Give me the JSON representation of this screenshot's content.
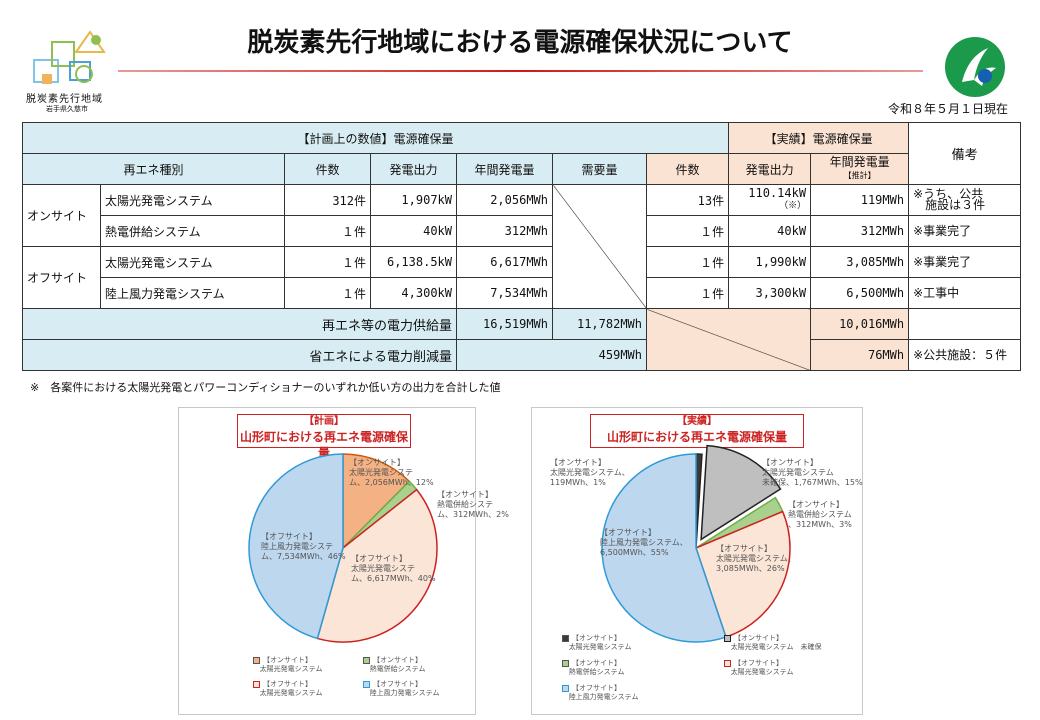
{
  "header": {
    "title": "脱炭素先行地域における電源確保状況について",
    "date": "令和８年５月１日現在",
    "logo_text1": "脱炭素先行地域",
    "logo_text2": "岩手県久慈市"
  },
  "table": {
    "plan_header": "【計画上の数値】電源確保量",
    "actual_header": "【実績】電源確保量",
    "remarks_header": "備考",
    "col_type": "再エネ種別",
    "col_count": "件数",
    "col_output": "発電出力",
    "col_annual": "年間発電量",
    "col_demand": "需要量",
    "col_count_a": "件数",
    "col_output_a": "発電出力",
    "col_annual_a": "年間発電量",
    "col_annual_a_sub": "【推計】",
    "group_onsite": "オンサイト",
    "group_offsite": "オフサイト",
    "rows": [
      {
        "type": "太陽光発電システム",
        "count": "312件",
        "output": "1,907kW",
        "annual": "2,056MWh",
        "count_a": "13件",
        "output_a": "110.14kW",
        "output_a_note": "（※）",
        "annual_a": "119MWh",
        "note": "※うち、公共\n　施設は３件"
      },
      {
        "type": "熱電併給システム",
        "count": "１件",
        "output": "40kW",
        "annual": "312MWh",
        "count_a": "１件",
        "output_a": "40kW",
        "annual_a": "312MWh",
        "note": "※事業完了"
      },
      {
        "type": "太陽光発電システム",
        "count": "１件",
        "output": "6,138.5kW",
        "annual": "6,617MWh",
        "count_a": "１件",
        "output_a": "1,990kW",
        "annual_a": "3,085MWh",
        "note": "※事業完了"
      },
      {
        "type": "陸上風力発電システム",
        "count": "１件",
        "output": "4,300kW",
        "annual": "7,534MWh",
        "count_a": "１件",
        "output_a": "3,300kW",
        "annual_a": "6,500MWh",
        "note": "※工事中"
      }
    ],
    "supply_label": "再エネ等の電力供給量",
    "supply_plan": "16,519MWh",
    "supply_demand": "11,782MWh",
    "supply_actual": "10,016MWh",
    "saving_label": "省エネによる電力削減量",
    "saving_plan": "459MWh",
    "saving_actual": "76MWh",
    "saving_note": "※公共施設：５件"
  },
  "footnote": "※　各案件における太陽光発電とパワーコンディショナーのいずれか低い方の出力を合計した値",
  "chart_data": [
    {
      "type": "pie",
      "title_small": "【計画】",
      "title": "山形町における再エネ電源確保量",
      "slices": [
        {
          "name": "【オンサイト】太陽光発電システム",
          "value": 2056,
          "percent": 12,
          "color": "#f4b183"
        },
        {
          "name": "【オンサイト】熱電併給システム",
          "value": 312,
          "percent": 2,
          "color": "#a9d18e"
        },
        {
          "name": "【オフサイト】太陽光発電システム",
          "value": 6617,
          "percent": 40,
          "color": "#fbe5d6"
        },
        {
          "name": "【オフサイト】陸上風力発電システム",
          "value": 7534,
          "percent": 46,
          "color": "#bdd7ee"
        }
      ],
      "labels": [
        {
          "l1": "【オンサイト】",
          "l2": "太陽光発電システ",
          "l3": "ム、2,056MWh、12%"
        },
        {
          "l1": "【オンサイト】",
          "l2": "熱電併給システ",
          "l3": "ム、312MWh、2%"
        },
        {
          "l1": "【オフサイト】",
          "l2": "太陽光発電システ",
          "l3": "ム、6,617MWh、40%"
        },
        {
          "l1": "【オフサイト】",
          "l2": "陸上風力発電システ",
          "l3": "ム、7,534MWh、46%"
        }
      ],
      "legend": [
        {
          "l1": "【オンサイト】",
          "l2": "太陽光発電システム"
        },
        {
          "l1": "【オンサイト】",
          "l2": "熱電併給システム"
        },
        {
          "l1": "【オフサイト】",
          "l2": "太陽光発電システム"
        },
        {
          "l1": "【オフサイト】",
          "l2": "陸上風力発電システム"
        }
      ]
    },
    {
      "type": "pie",
      "title_small": "【実績】",
      "title": "山形町における再エネ電源確保量",
      "slices": [
        {
          "name": "【オンサイト】太陽光発電システム",
          "value": 119,
          "percent": 1,
          "color": "#3a3a3a"
        },
        {
          "name": "【オンサイト】太陽光発電システム 未確保",
          "value": 1767,
          "percent": 15,
          "color": "#bfbfbf"
        },
        {
          "name": "【オンサイト】熱電併給システム",
          "value": 312,
          "percent": 3,
          "color": "#a9d18e"
        },
        {
          "name": "【オフサイト】太陽光発電システム",
          "value": 3085,
          "percent": 26,
          "color": "#fbe5d6"
        },
        {
          "name": "【オフサイト】陸上風力発電システム",
          "value": 6500,
          "percent": 55,
          "color": "#bdd7ee"
        }
      ],
      "labels": [
        {
          "l1": "【オンサイト】",
          "l2": "太陽光発電システム、",
          "l3": "119MWh、1%"
        },
        {
          "l1": "【オンサイト】",
          "l2": "太陽光発電システム",
          "l3": "未確保、1,767MWh、15%"
        },
        {
          "l1": "【オンサイト】",
          "l2": "熱電併給システム",
          "l3": "、312MWh、3%"
        },
        {
          "l1": "【オフサイト】",
          "l2": "太陽光発電システム、",
          "l3": "3,085MWh、26%"
        },
        {
          "l1": "【オフサイト】",
          "l2": "陸上風力発電システム、",
          "l3": "6,500MWh、55%"
        }
      ],
      "legend": [
        {
          "l1": "【オンサイト】",
          "l2": "太陽光発電システム"
        },
        {
          "l1": "【オンサイト】",
          "l2": "太陽光発電システム　未確保"
        },
        {
          "l1": "【オンサイト】",
          "l2": "熱電併給システム"
        },
        {
          "l1": "【オフサイト】",
          "l2": "太陽光発電システム"
        },
        {
          "l1": "【オフサイト】",
          "l2": "陸上風力発電システム"
        }
      ]
    }
  ]
}
